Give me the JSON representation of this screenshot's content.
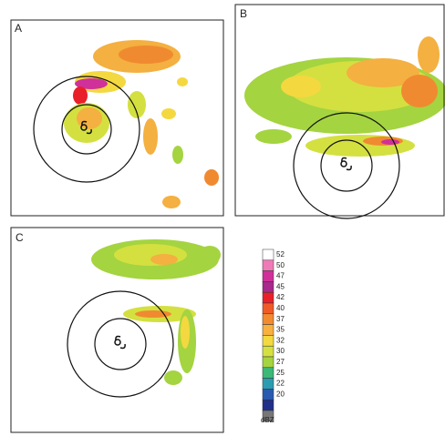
{
  "panels": [
    {
      "label": "A"
    },
    {
      "label": "B"
    },
    {
      "label": "C"
    }
  ],
  "colorbar": {
    "levels": [
      52,
      50,
      47,
      45,
      42,
      40,
      37,
      35,
      32,
      30,
      27,
      25,
      22,
      20
    ],
    "unit": "dBZ",
    "colors": [
      "#ffffff",
      "#f07ab8",
      "#d0309a",
      "#a8288c",
      "#e8202a",
      "#f05a28",
      "#f48a30",
      "#f8b040",
      "#f4d840",
      "#d4e040",
      "#a4d440",
      "#3cb878",
      "#2a9cb0",
      "#2a5ab0",
      "#20308a"
    ]
  }
}
